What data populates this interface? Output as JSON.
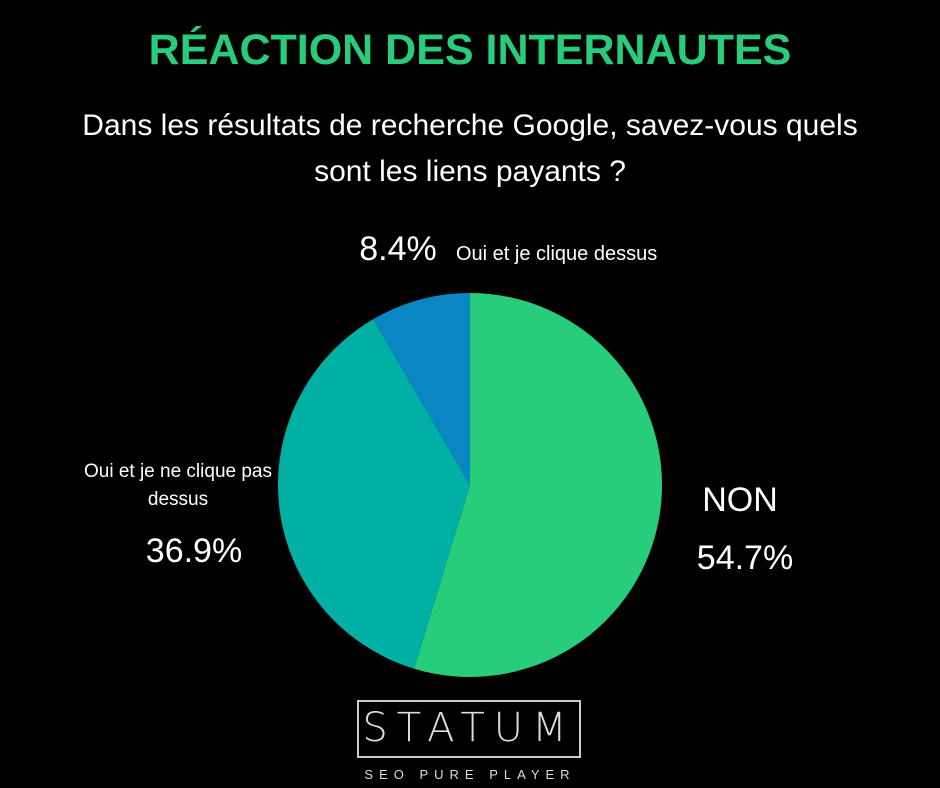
{
  "chart_data": {
    "type": "pie",
    "title": "RÉACTION DES INTERNAUTES",
    "subtitle": "Dans les résultats de recherche Google, savez-vous quels sont les liens payants ?",
    "categories": [
      "NON",
      "Oui et je ne clique pas dessus",
      "Oui et je clique dessus"
    ],
    "values": [
      54.7,
      36.9,
      8.4
    ],
    "value_labels": [
      "54.7%",
      "36.9%",
      "8.4%"
    ],
    "colors": [
      "#28cd7b",
      "#00b0a5",
      "#0a87c2"
    ]
  },
  "logo": {
    "name": "STATUM",
    "tagline": "SEO PURE PLAYER"
  }
}
